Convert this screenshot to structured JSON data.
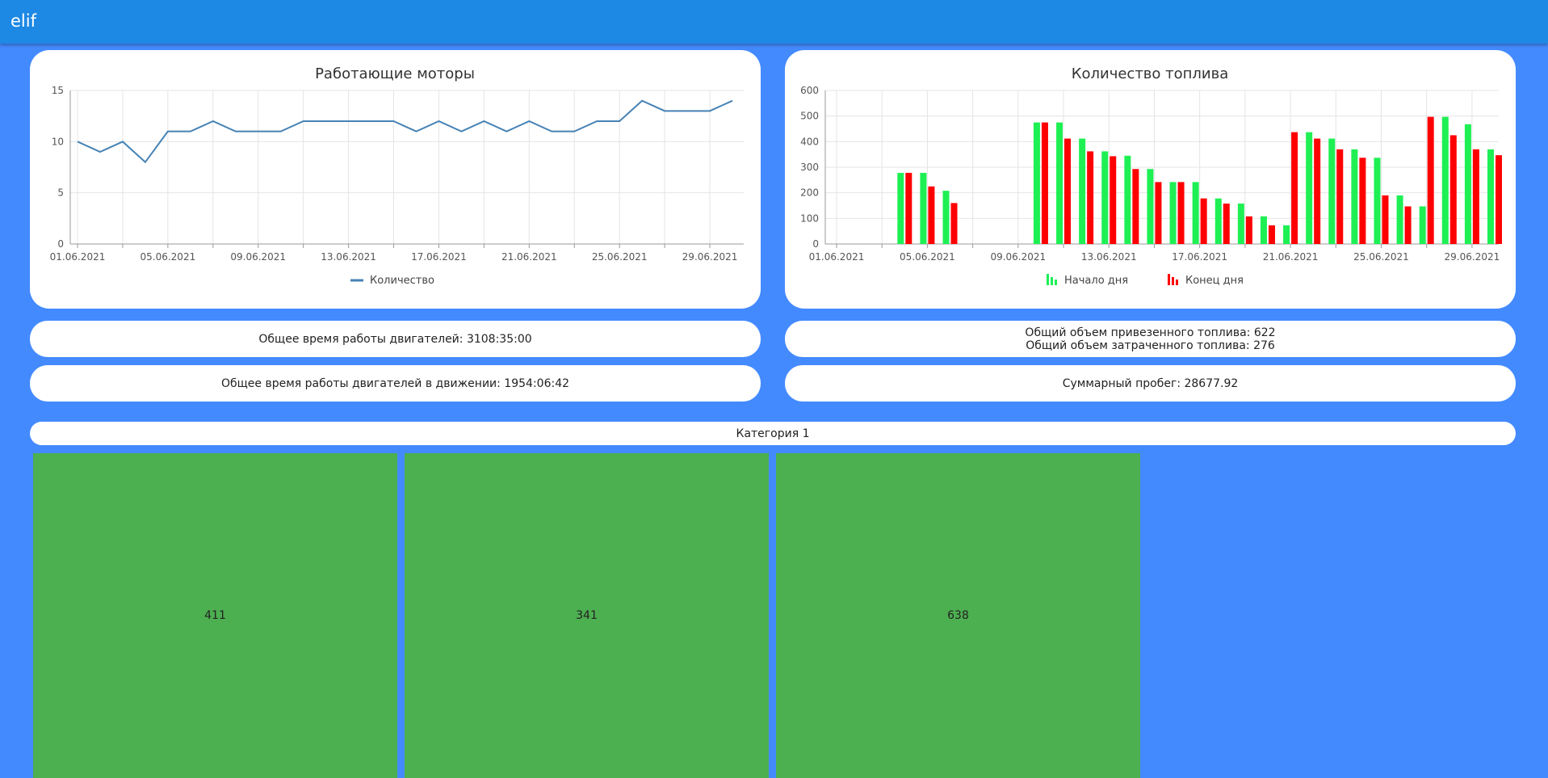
{
  "header": {
    "title": "elif"
  },
  "chart_data": [
    {
      "type": "line",
      "title": "Работающие моторы",
      "categories": [
        "01.06.2021",
        null,
        null,
        null,
        "05.06.2021",
        null,
        null,
        null,
        "09.06.2021",
        null,
        null,
        null,
        "13.06.2021",
        null,
        null,
        null,
        "17.06.2021",
        null,
        null,
        null,
        "21.06.2021",
        null,
        null,
        null,
        "25.06.2021",
        null,
        null,
        null,
        "29.06.2021",
        null
      ],
      "series": [
        {
          "name": "Количество",
          "color": "#4682b4",
          "values": [
            10,
            9,
            10,
            8,
            11,
            11,
            12,
            11,
            11,
            11,
            12,
            12,
            12,
            12,
            12,
            11,
            12,
            11,
            12,
            11,
            12,
            11,
            11,
            12,
            12,
            14,
            13,
            13,
            13,
            14
          ]
        }
      ],
      "ylim": [
        0,
        15
      ],
      "yticks": [
        0,
        5,
        10,
        15
      ],
      "grid": true,
      "legend": "bottom"
    },
    {
      "type": "bar",
      "title": "Количество топлива",
      "categories": [
        "01.06.2021",
        null,
        null,
        null,
        "05.06.2021",
        null,
        null,
        null,
        "09.06.2021",
        null,
        null,
        null,
        "13.06.2021",
        null,
        null,
        null,
        "17.06.2021",
        null,
        null,
        null,
        "21.06.2021",
        null,
        null,
        null,
        "25.06.2021",
        null,
        null,
        null,
        "29.06.2021",
        null
      ],
      "series": [
        {
          "name": "Начало дня",
          "color": "#1ef054",
          "values": [
            null,
            null,
            null,
            278,
            278,
            208,
            null,
            null,
            null,
            475,
            475,
            412,
            362,
            345,
            293,
            242,
            242,
            178,
            158,
            108,
            73,
            437,
            412,
            370,
            337,
            190,
            147,
            497,
            468,
            370
          ]
        },
        {
          "name": "Конец дня",
          "color": "#ff0000",
          "values": [
            null,
            null,
            null,
            278,
            225,
            160,
            null,
            null,
            null,
            475,
            412,
            362,
            343,
            293,
            242,
            242,
            178,
            158,
            108,
            73,
            437,
            412,
            370,
            337,
            190,
            147,
            497,
            425,
            370,
            347
          ]
        }
      ],
      "ylim": [
        0,
        600
      ],
      "yticks": [
        0,
        100,
        200,
        300,
        400,
        500,
        600
      ],
      "grid": true,
      "legend": "bottom"
    }
  ],
  "stats": {
    "engine_time": "Общее время работы двигателей: 3108:35:00",
    "fuel_delivered": "Общий объем привезенного топлива: 622",
    "fuel_spent": "Общий объем затраченного топлива: 276",
    "engine_time_moving": "Общее время работы двигателей в движении: 1954:06:42",
    "mileage": "Суммарный пробег: 28677.92"
  },
  "category": {
    "title": "Категория 1",
    "tiles": [
      411,
      341,
      638
    ]
  }
}
